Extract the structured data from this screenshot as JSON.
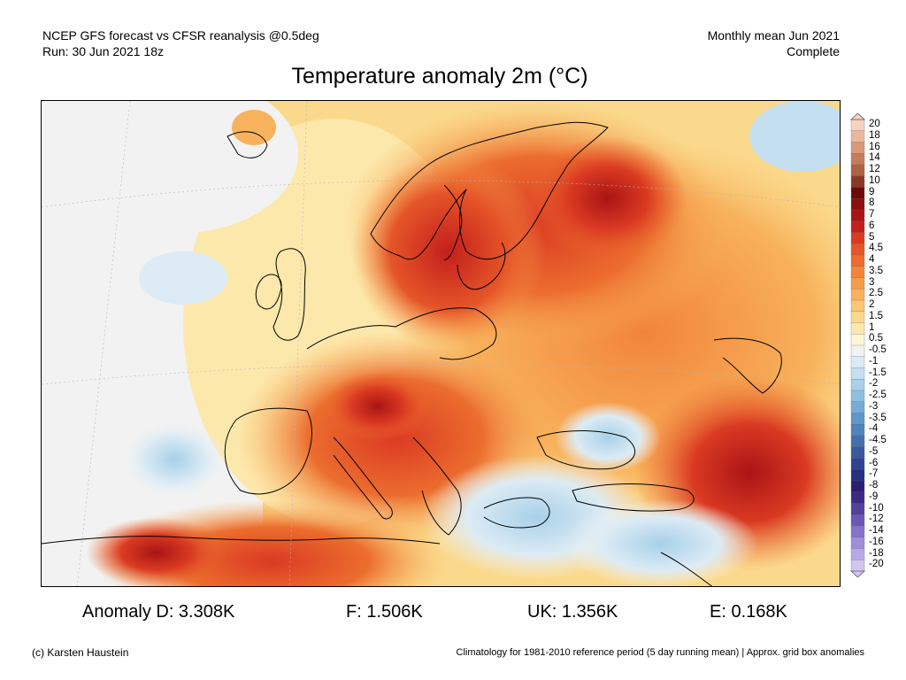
{
  "header": {
    "line1": "NCEP GFS forecast vs CFSR reanalysis @0.5deg",
    "line2": "Run: 30 Jun 2021 18z",
    "right_line1": "Monthly mean Jun 2021",
    "right_line2": "Complete"
  },
  "title": "Temperature anomaly 2m (°C)",
  "colorbar": {
    "labels": [
      "20",
      "18",
      "16",
      "14",
      "12",
      "10",
      "9",
      "8",
      "7",
      "6",
      "5",
      "4.5",
      "4",
      "3.5",
      "3",
      "2.5",
      "2",
      "1.5",
      "1",
      "0.5",
      "-0.5",
      "-1",
      "-1.5",
      "-2",
      "-2.5",
      "-3",
      "-3.5",
      "-4",
      "-4.5",
      "-5",
      "-6",
      "-7",
      "-8",
      "-9",
      "-10",
      "-12",
      "-14",
      "-16",
      "-18",
      "-20"
    ],
    "colors": [
      "#f6d2c0",
      "#ebb89c",
      "#d89a7a",
      "#c47d5c",
      "#ad6444",
      "#8a3a24",
      "#6f0a0a",
      "#8c0f10",
      "#aa1416",
      "#c31f1c",
      "#da3a22",
      "#e55528",
      "#ec6d2e",
      "#f2843a",
      "#f59b4a",
      "#f8b25c",
      "#fac772",
      "#fbd98c",
      "#fde8ac",
      "#fff6d8",
      "#f2f2f2",
      "#dcebf5",
      "#c4dff0",
      "#a8d0e8",
      "#8ebfe0",
      "#76acd6",
      "#6097ca",
      "#4f83bc",
      "#4370ad",
      "#39599d",
      "#2f4490",
      "#262f80",
      "#2a1f70",
      "#3d2a86",
      "#55409e",
      "#6c58b4",
      "#8672c8",
      "#9f8ed8",
      "#b8a9e6",
      "#d2c6f1"
    ]
  },
  "map": {
    "land_outline_color": "#000000"
  },
  "anomalies": [
    {
      "label": "Anomaly D: 3.308K"
    },
    {
      "label": "F: 1.506K"
    },
    {
      "label": "UK: 1.356K"
    },
    {
      "label": "E: 0.168K"
    }
  ],
  "footer": {
    "credit": "(c) Karsten Haustein",
    "climatology": "Climatology for 1981-2010 reference period (5 day running mean) | Approx. grid box anomalies"
  }
}
